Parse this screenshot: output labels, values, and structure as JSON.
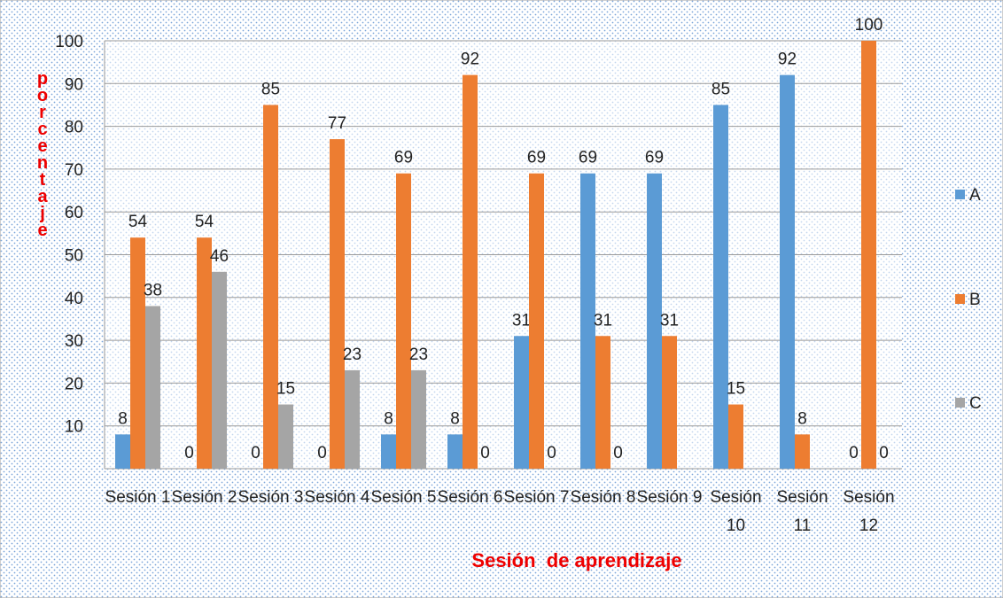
{
  "chart_data": {
    "type": "bar",
    "x_label": "Sesión  de aprendizaje",
    "y_label": "porcentaje",
    "categories": [
      "Sesión 1",
      "Sesión 2",
      "Sesión 3",
      "Sesión 4",
      "Sesión 5",
      "Sesión 6",
      "Sesión 7",
      "Sesión 8",
      "Sesión 9",
      "Sesión 10",
      "Sesión 11",
      "Sesión 12"
    ],
    "series": [
      {
        "name": "A",
        "color": "#5b9bd5",
        "values": [
          8,
          0,
          0,
          0,
          8,
          8,
          31,
          69,
          69,
          85,
          92,
          0
        ]
      },
      {
        "name": "B",
        "color": "#ed7d31",
        "values": [
          54,
          54,
          85,
          77,
          69,
          92,
          69,
          31,
          31,
          15,
          8,
          100
        ]
      },
      {
        "name": "C",
        "color": "#a5a5a5",
        "values": [
          38,
          46,
          15,
          23,
          23,
          0,
          0,
          0,
          null,
          null,
          null,
          0
        ]
      }
    ],
    "ylim": [
      0,
      100
    ],
    "yticks": [
      10,
      20,
      30,
      40,
      50,
      60,
      70,
      80,
      90,
      100
    ],
    "grid": true,
    "legend": "right"
  }
}
